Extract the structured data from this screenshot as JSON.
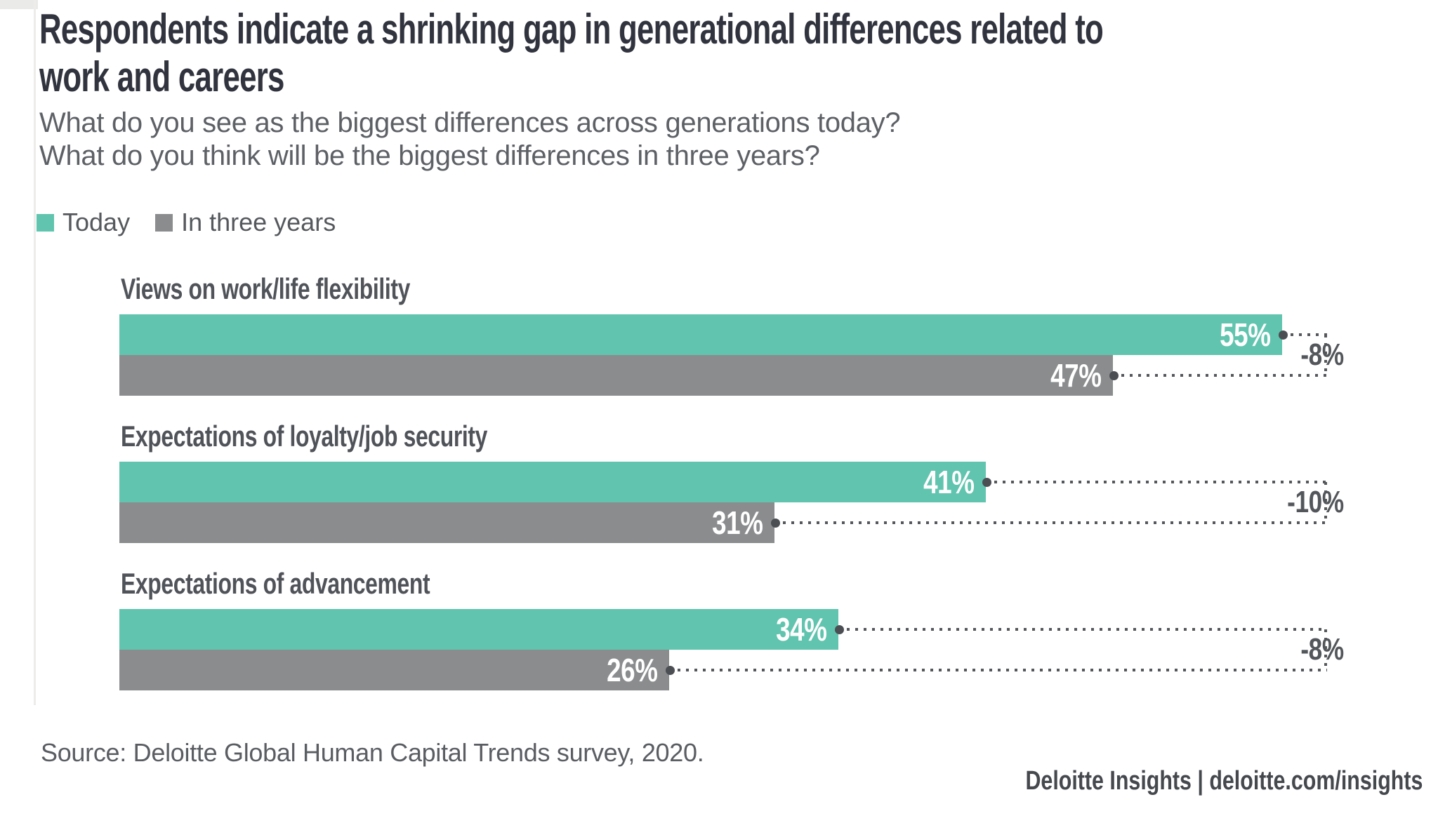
{
  "page": {
    "title_lines": [
      "Respondents indicate a shrinking gap in generational differences related to",
      "work and careers"
    ],
    "subtitle_lines": [
      "What do you see as the biggest differences across generations today?",
      "What do you think will be the biggest differences in three years?"
    ],
    "source": "Source: Deloitte Global Human Capital Trends survey, 2020.",
    "footer": "Deloitte Insights | deloitte.com/insights"
  },
  "chart_data": {
    "type": "bar",
    "orientation": "horizontal",
    "title": "Respondents indicate a shrinking gap in generational differences related to work and careers",
    "categories": [
      "Views on work/life flexibility",
      "Expectations of loyalty/job security",
      "Expectations of advancement"
    ],
    "series": [
      {
        "name": "Today",
        "color": "#61c4ae",
        "values": [
          55,
          41,
          34
        ]
      },
      {
        "name": "In three years",
        "color": "#8a8c8e",
        "values": [
          47,
          31,
          26
        ]
      }
    ],
    "differences": [
      -8,
      -10,
      -8
    ],
    "difference_labels": [
      "-8%",
      "-10%",
      "-8%"
    ],
    "value_suffix": "%",
    "xlim": [
      0,
      57
    ],
    "grid": false,
    "legend_position": "top-left",
    "value_labels_inside_bars": true,
    "annotation_color": "#55575a"
  }
}
